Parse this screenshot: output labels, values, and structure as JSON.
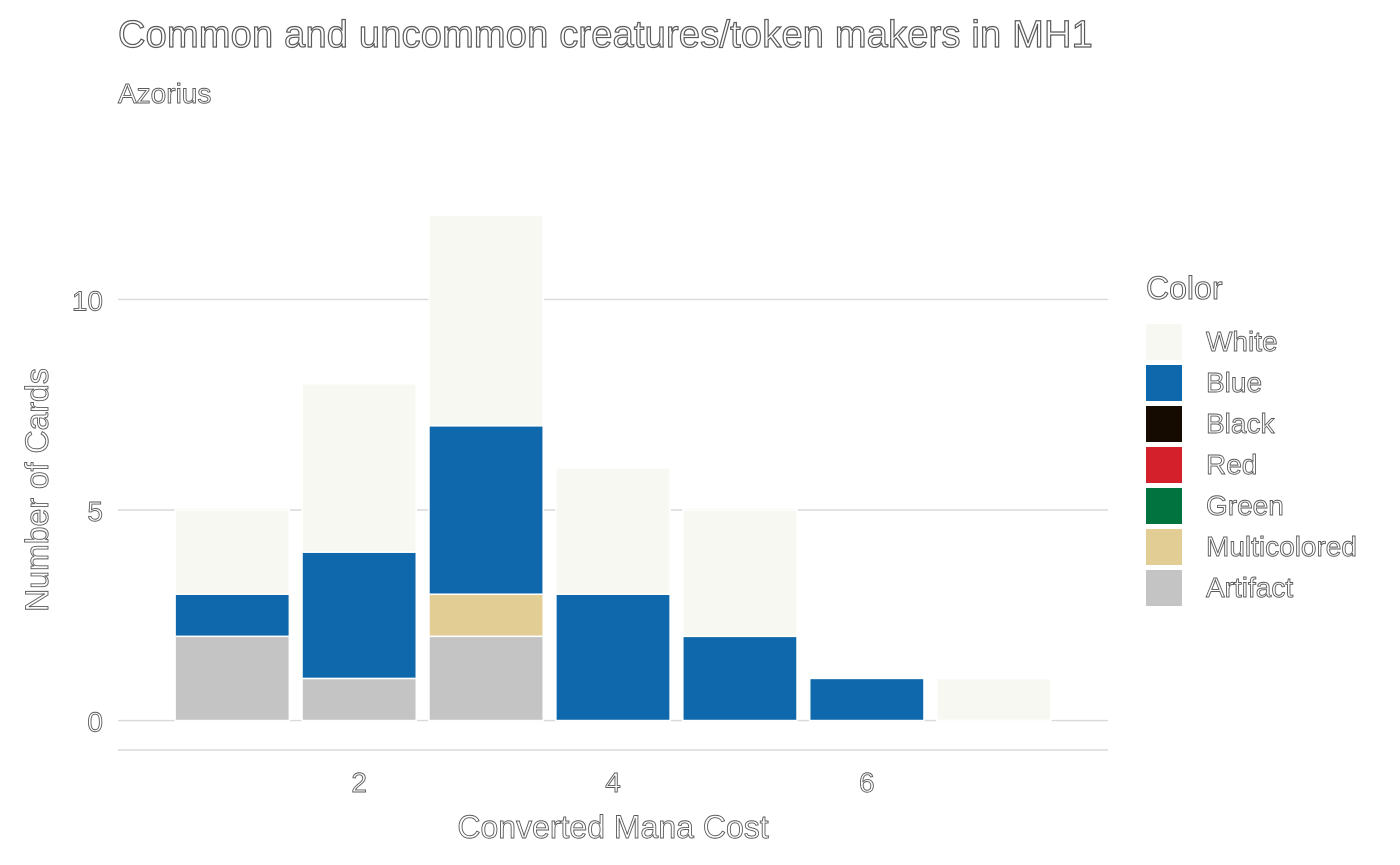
{
  "chart_data": {
    "type": "bar",
    "stacked": true,
    "title": "Common and uncommon creatures/token makers in MH1",
    "subtitle": "Azorius",
    "xlabel": "Converted Mana Cost",
    "ylabel": "Number of Cards",
    "x": [
      1,
      2,
      3,
      4,
      5,
      6,
      7
    ],
    "xlim": [
      0.1,
      7.9
    ],
    "ylim": [
      -0.7,
      12.6
    ],
    "x_ticks": [
      2,
      4,
      6
    ],
    "y_ticks": [
      0,
      5,
      10
    ],
    "grid": true,
    "legend_title": "Color",
    "legend_position": "right",
    "series": [
      {
        "name": "Artifact",
        "color": "#c4c4c4",
        "values": [
          2,
          1,
          2,
          0,
          0,
          0,
          0
        ]
      },
      {
        "name": "Multicolored",
        "color": "#e2cd95",
        "values": [
          0,
          0,
          1,
          0,
          0,
          0,
          0
        ]
      },
      {
        "name": "Green",
        "color": "#00733e",
        "values": [
          0,
          0,
          0,
          0,
          0,
          0,
          0
        ]
      },
      {
        "name": "Red",
        "color": "#d3202a",
        "values": [
          0,
          0,
          0,
          0,
          0,
          0,
          0
        ]
      },
      {
        "name": "Black",
        "color": "#150b00",
        "values": [
          0,
          0,
          0,
          0,
          0,
          0,
          0
        ]
      },
      {
        "name": "Blue",
        "color": "#0e68ab",
        "values": [
          1,
          3,
          4,
          3,
          2,
          1,
          0
        ]
      },
      {
        "name": "White",
        "color": "#f8f8f3",
        "values": [
          2,
          4,
          5,
          3,
          3,
          0,
          1
        ]
      }
    ],
    "legend_order": [
      "White",
      "Blue",
      "Black",
      "Red",
      "Green",
      "Multicolored",
      "Artifact"
    ]
  }
}
